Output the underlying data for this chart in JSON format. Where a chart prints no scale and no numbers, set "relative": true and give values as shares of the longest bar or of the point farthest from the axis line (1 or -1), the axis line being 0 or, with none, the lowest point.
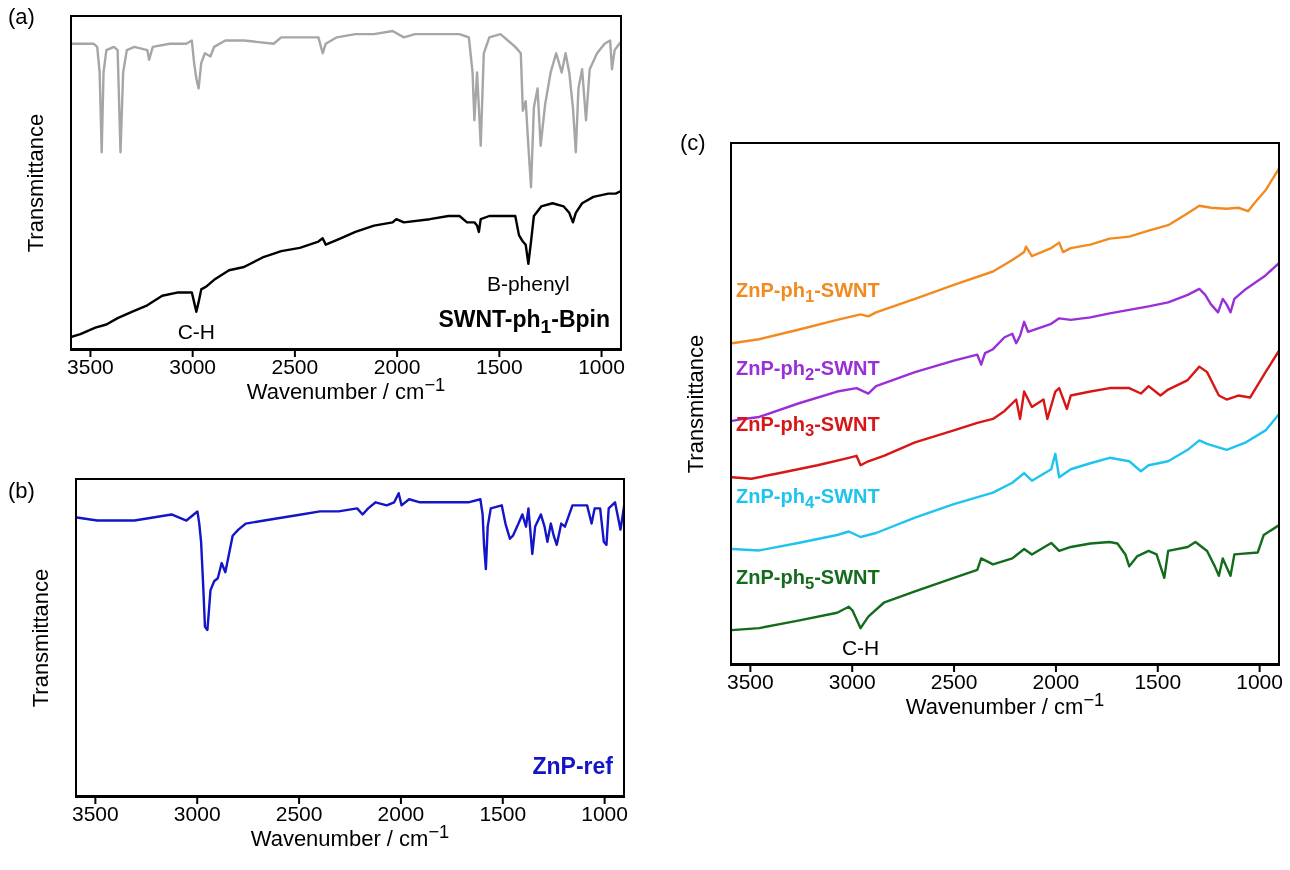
{
  "chart_data": [
    {
      "type": "line",
      "title": "(a)",
      "xlabel": "Wavenumber / cm$^{−1}$",
      "ylabel": "Transmittance",
      "relative": true,
      "xlim": [
        3600,
        900
      ],
      "xticks": [
        3500,
        3000,
        2500,
        2000,
        1500,
        1000
      ],
      "series": [
        {
          "color": "#a6a6a6",
          "x": [
            3600,
            3549,
            3485,
            3467,
            3455,
            3445,
            3436,
            3422,
            3385,
            3367,
            3353,
            3340,
            3322,
            3285,
            3222,
            3213,
            3195,
            3113,
            3031,
            3004,
            2993,
            2982,
            2971,
            2958,
            2940,
            2913,
            2895,
            2840,
            2749,
            2604,
            2567,
            2385,
            2364,
            2349,
            2295,
            2204,
            2113,
            2022,
            1967,
            1913,
            1840,
            1695,
            1649,
            1631,
            1622,
            1609,
            1600,
            1591,
            1576,
            1549,
            1495,
            1476,
            1422,
            1395,
            1385,
            1371,
            1358,
            1345,
            1331,
            1313,
            1298,
            1276,
            1249,
            1222,
            1195,
            1176,
            1158,
            1140,
            1126,
            1113,
            1095,
            1076,
            1058,
            1022,
            985,
            958,
            949,
            936,
            913,
            900
          ],
          "values": [
            0.96,
            0.96,
            0.96,
            0.95,
            0.87,
            0.62,
            0.87,
            0.94,
            0.95,
            0.94,
            0.62,
            0.87,
            0.94,
            0.95,
            0.94,
            0.91,
            0.95,
            0.96,
            0.96,
            0.97,
            0.9,
            0.85,
            0.82,
            0.9,
            0.93,
            0.92,
            0.95,
            0.97,
            0.97,
            0.96,
            0.98,
            0.98,
            0.93,
            0.96,
            0.98,
            0.99,
            0.99,
            1.0,
            0.98,
            0.99,
            0.99,
            0.99,
            0.98,
            0.87,
            0.72,
            0.87,
            0.76,
            0.64,
            0.93,
            0.98,
            0.99,
            0.98,
            0.95,
            0.93,
            0.75,
            0.78,
            0.64,
            0.51,
            0.76,
            0.82,
            0.64,
            0.77,
            0.87,
            0.93,
            0.87,
            0.93,
            0.87,
            0.76,
            0.62,
            0.82,
            0.88,
            0.72,
            0.88,
            0.93,
            0.96,
            0.97,
            0.88,
            0.94,
            0.96,
            0.97
          ]
        },
        {
          "name": "SWNT-ph$_{1}$-Bpin",
          "color": "#000000",
          "x": [
            3600,
            3549,
            3476,
            3422,
            3367,
            3295,
            3222,
            3149,
            3076,
            3031,
            3004,
            2993,
            2982,
            2971,
            2958,
            2931,
            2895,
            2822,
            2749,
            2658,
            2567,
            2476,
            2385,
            2364,
            2349,
            2276,
            2204,
            2113,
            2022,
            2004,
            1967,
            1840,
            1749,
            1695,
            1658,
            1622,
            1609,
            1600,
            1591,
            1549,
            1476,
            1422,
            1404,
            1385,
            1371,
            1358,
            1345,
            1331,
            1295,
            1240,
            1185,
            1158,
            1140,
            1126,
            1095,
            1040,
            967,
            931,
            900
          ],
          "values": [
            0.04,
            0.05,
            0.07,
            0.08,
            0.1,
            0.12,
            0.14,
            0.17,
            0.18,
            0.18,
            0.18,
            0.15,
            0.12,
            0.15,
            0.19,
            0.2,
            0.22,
            0.25,
            0.26,
            0.29,
            0.31,
            0.32,
            0.34,
            0.35,
            0.33,
            0.35,
            0.37,
            0.39,
            0.4,
            0.41,
            0.4,
            0.41,
            0.42,
            0.42,
            0.4,
            0.4,
            0.39,
            0.37,
            0.41,
            0.42,
            0.42,
            0.42,
            0.36,
            0.34,
            0.33,
            0.27,
            0.34,
            0.42,
            0.45,
            0.46,
            0.45,
            0.43,
            0.4,
            0.43,
            0.46,
            0.48,
            0.49,
            0.49,
            0.5
          ]
        }
      ],
      "annotations": [
        {
          "text": "C-H",
          "x": 2982,
          "y": 0.12
        },
        {
          "text": "B-phenyl",
          "x": 1358,
          "y": 0.27
        }
      ]
    },
    {
      "type": "line",
      "title": "(b)",
      "xlabel": "Wavenumber / cm$^{−1}$",
      "ylabel": "Transmittance",
      "relative": true,
      "xlim": [
        3600,
        900
      ],
      "xticks": [
        3500,
        3000,
        2500,
        2000,
        1500,
        1000
      ],
      "series": [
        {
          "name": "ZnP-ref",
          "color": "#1414c8",
          "x": [
            3600,
            3591,
            3491,
            3400,
            3308,
            3217,
            3126,
            3053,
            3017,
            2999,
            2990,
            2981,
            2971,
            2962,
            2950,
            2944,
            2935,
            2917,
            2899,
            2880,
            2862,
            2844,
            2826,
            2798,
            2762,
            2671,
            2580,
            2489,
            2397,
            2306,
            2215,
            2188,
            2161,
            2124,
            2070,
            2033,
            2011,
            1997,
            1960,
            1906,
            1851,
            1760,
            1669,
            1610,
            1599,
            1592,
            1583,
            1574,
            1559,
            1505,
            1487,
            1465,
            1450,
            1423,
            1404,
            1386,
            1374,
            1355,
            1341,
            1313,
            1295,
            1281,
            1264,
            1250,
            1235,
            1213,
            1195,
            1158,
            1086,
            1064,
            1049,
            1022,
            1004,
            991,
            980,
            949,
            922,
            904
          ],
          "values": [
            0.92,
            0.92,
            0.91,
            0.91,
            0.91,
            0.92,
            0.93,
            0.91,
            0.93,
            0.94,
            0.9,
            0.84,
            0.7,
            0.56,
            0.55,
            0.6,
            0.68,
            0.71,
            0.72,
            0.77,
            0.74,
            0.8,
            0.86,
            0.88,
            0.9,
            0.91,
            0.92,
            0.93,
            0.94,
            0.94,
            0.95,
            0.93,
            0.95,
            0.97,
            0.96,
            0.97,
            1.0,
            0.96,
            0.98,
            0.97,
            0.97,
            0.97,
            0.97,
            0.98,
            0.93,
            0.83,
            0.75,
            0.89,
            0.95,
            0.96,
            0.9,
            0.85,
            0.86,
            0.9,
            0.93,
            0.89,
            0.95,
            0.8,
            0.89,
            0.93,
            0.89,
            0.84,
            0.9,
            0.86,
            0.83,
            0.9,
            0.89,
            0.96,
            0.96,
            0.9,
            0.95,
            0.95,
            0.84,
            0.83,
            0.95,
            0.97,
            0.88,
            0.96
          ]
        }
      ]
    },
    {
      "type": "line",
      "title": "(c)",
      "xlabel": "Wavenumber / cm$^{−1}$",
      "ylabel": "Transmittance",
      "relative": true,
      "xlim": [
        3600,
        900
      ],
      "xticks": [
        3500,
        3000,
        2500,
        2000,
        1500,
        1000
      ],
      "series": [
        {
          "name": "ZnP-ph$_{1}$-SWNT",
          "color": "#f28a1f",
          "x": [
            3590,
            3457,
            3265,
            3074,
            2959,
            2921,
            2883,
            2692,
            2501,
            2309,
            2214,
            2156,
            2147,
            2118,
            2023,
            1984,
            1965,
            1927,
            1831,
            1736,
            1640,
            1545,
            1449,
            1353,
            1296,
            1239,
            1162,
            1105,
            1057,
            1028,
            971,
            900
          ],
          "values": [
            0.646,
            0.654,
            0.673,
            0.693,
            0.704,
            0.7,
            0.708,
            0.735,
            0.763,
            0.79,
            0.813,
            0.829,
            0.84,
            0.821,
            0.837,
            0.848,
            0.829,
            0.837,
            0.844,
            0.856,
            0.86,
            0.872,
            0.883,
            0.907,
            0.922,
            0.918,
            0.916,
            0.918,
            0.911,
            0.926,
            0.953,
            1.0
          ]
        },
        {
          "name": "ZnP-ph$_{2}$-SWNT",
          "color": "#9a2fd6",
          "x": [
            3590,
            3533,
            3457,
            3265,
            3074,
            2979,
            2921,
            2883,
            2692,
            2501,
            2386,
            2367,
            2348,
            2309,
            2252,
            2214,
            2195,
            2176,
            2156,
            2137,
            2023,
            1984,
            1927,
            1831,
            1736,
            1545,
            1449,
            1353,
            1296,
            1267,
            1239,
            1204,
            1181,
            1162,
            1143,
            1124,
            1067,
            971,
            900
          ],
          "values": [
            0.49,
            0.494,
            0.498,
            0.525,
            0.549,
            0.556,
            0.545,
            0.56,
            0.588,
            0.611,
            0.623,
            0.603,
            0.626,
            0.634,
            0.658,
            0.665,
            0.646,
            0.661,
            0.689,
            0.669,
            0.685,
            0.696,
            0.693,
            0.698,
            0.706,
            0.72,
            0.728,
            0.743,
            0.755,
            0.743,
            0.724,
            0.708,
            0.735,
            0.724,
            0.708,
            0.735,
            0.755,
            0.782,
            0.809
          ]
        },
        {
          "name": "ZnP-ph$_{3}$-SWNT",
          "color": "#d91616",
          "x": [
            3590,
            3495,
            3361,
            3170,
            3017,
            2979,
            2959,
            2921,
            2845,
            2692,
            2501,
            2386,
            2309,
            2252,
            2195,
            2176,
            2156,
            2118,
            2061,
            2042,
            2003,
            1984,
            1946,
            1927,
            1831,
            1736,
            1640,
            1583,
            1545,
            1487,
            1449,
            1353,
            1296,
            1258,
            1200,
            1162,
            1105,
            1047,
            971,
            900
          ],
          "values": [
            0.377,
            0.374,
            0.385,
            0.401,
            0.416,
            0.42,
            0.401,
            0.409,
            0.42,
            0.447,
            0.471,
            0.486,
            0.494,
            0.51,
            0.533,
            0.494,
            0.549,
            0.518,
            0.533,
            0.494,
            0.549,
            0.556,
            0.514,
            0.541,
            0.549,
            0.556,
            0.556,
            0.545,
            0.56,
            0.541,
            0.553,
            0.572,
            0.599,
            0.588,
            0.541,
            0.533,
            0.541,
            0.537,
            0.588,
            0.634
          ]
        },
        {
          "name": "ZnP-ph$_{4}$-SWNT",
          "color": "#1ec3ee",
          "x": [
            3590,
            3457,
            3265,
            3074,
            3017,
            2959,
            2883,
            2692,
            2501,
            2309,
            2214,
            2156,
            2118,
            2023,
            2003,
            1984,
            1927,
            1831,
            1736,
            1640,
            1583,
            1545,
            1449,
            1353,
            1296,
            1258,
            1162,
            1067,
            971,
            900
          ],
          "values": [
            0.233,
            0.23,
            0.245,
            0.261,
            0.268,
            0.257,
            0.265,
            0.296,
            0.323,
            0.346,
            0.366,
            0.385,
            0.37,
            0.393,
            0.424,
            0.377,
            0.393,
            0.405,
            0.416,
            0.409,
            0.389,
            0.401,
            0.409,
            0.432,
            0.451,
            0.444,
            0.432,
            0.447,
            0.471,
            0.506
          ]
        },
        {
          "name": "ZnP-ph$_{5}$-SWNT",
          "color": "#136b1c",
          "x": [
            3590,
            3457,
            3265,
            3074,
            3017,
            2998,
            2959,
            2921,
            2845,
            2692,
            2501,
            2386,
            2367,
            2309,
            2214,
            2156,
            2118,
            2023,
            1984,
            1927,
            1831,
            1736,
            1698,
            1659,
            1640,
            1602,
            1545,
            1506,
            1468,
            1449,
            1353,
            1315,
            1258,
            1220,
            1200,
            1181,
            1143,
            1124,
            1009,
            980,
            900
          ],
          "values": [
            0.07,
            0.074,
            0.089,
            0.105,
            0.117,
            0.109,
            0.074,
            0.097,
            0.125,
            0.148,
            0.175,
            0.191,
            0.214,
            0.202,
            0.214,
            0.233,
            0.222,
            0.245,
            0.229,
            0.237,
            0.244,
            0.247,
            0.244,
            0.222,
            0.198,
            0.218,
            0.229,
            0.222,
            0.175,
            0.229,
            0.237,
            0.247,
            0.229,
            0.198,
            0.179,
            0.214,
            0.179,
            0.222,
            0.226,
            0.261,
            0.282
          ]
        }
      ],
      "annotations": [
        {
          "text": "C-H",
          "x": 2959,
          "y": 0.074
        }
      ]
    }
  ]
}
